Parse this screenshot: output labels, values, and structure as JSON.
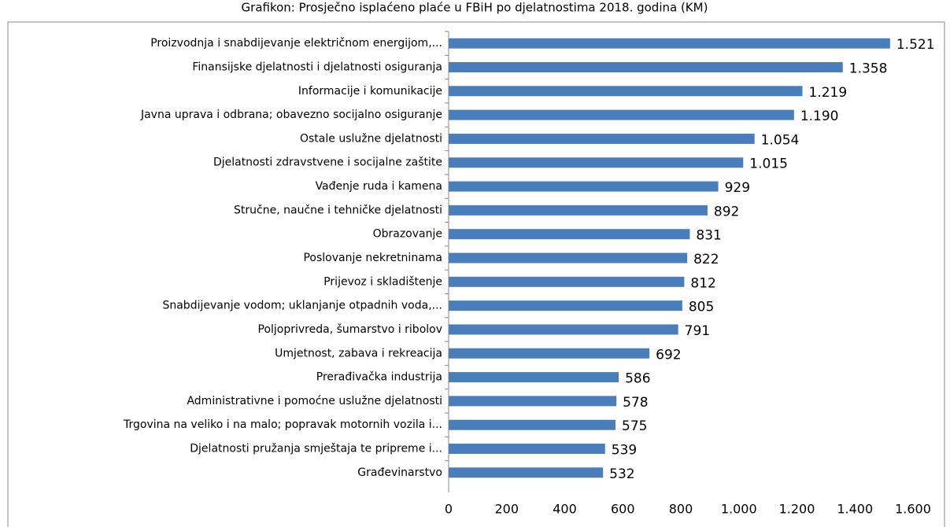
{
  "chart_data": {
    "type": "bar",
    "orientation": "horizontal",
    "title": "Grafikon: Prosječno isplaćeno plaće u FBiH po djelatnostima 2018. godina (KM)",
    "categories": [
      "Proizvodnja i snabdijevanje električnom energijom,...",
      "Finansijske djelatnosti i djelatnosti osiguranja",
      "Informacije i komunikacije",
      "Javna uprava i odbrana; obavezno socijalno osiguranje",
      "Ostale uslužne djelatnosti",
      "Djelatnosti zdravstvene i socijalne zaštite",
      "Vađenje ruda i kamena",
      "Stručne, naučne i tehničke djelatnosti",
      "Obrazovanje",
      "Poslovanje nekretninama",
      "Prijevoz i skladištenje",
      "Snabdijevanje vodom; uklanjanje otpadnih voda,...",
      "Poljoprivreda, šumarstvo i ribolov",
      "Umjetnost, zabava i rekreacija",
      "Prerađivačka industrija",
      "Administrativne i pomoćne uslužne djelatnosti",
      "Trgovina na veliko i na malo; popravak motornih vozila i...",
      "Djelatnosti pružanja smještaja te pripreme i...",
      "Građevinarstvo"
    ],
    "values": [
      1521,
      1358,
      1219,
      1190,
      1054,
      1015,
      929,
      892,
      831,
      822,
      812,
      805,
      791,
      692,
      586,
      578,
      575,
      539,
      532
    ],
    "value_labels": [
      "1.521",
      "1.358",
      "1.219",
      "1.190",
      "1.054",
      "1.015",
      "929",
      "892",
      "831",
      "822",
      "812",
      "805",
      "791",
      "692",
      "586",
      "578",
      "575",
      "539",
      "532"
    ],
    "color": "#4a7ebb",
    "xlim": [
      0,
      1600
    ],
    "xticks": [
      0,
      200,
      400,
      600,
      800,
      {
        "value": 1000,
        "label": "1.000"
      },
      {
        "value": 1200,
        "label": "1.200"
      },
      {
        "value": 1400,
        "label": "1.400"
      },
      {
        "value": 1600,
        "label": "1.600"
      }
    ]
  }
}
